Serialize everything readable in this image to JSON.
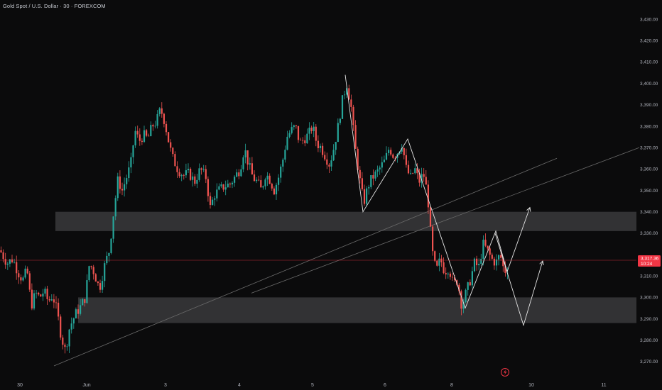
{
  "header": {
    "title": "Gold Spot / U.S. Dollar · 30 · FOREXCOM"
  },
  "colors": {
    "background": "#0b0b0c",
    "up": "#26a69a",
    "down": "#ef5350",
    "zone": "#3a3a3c",
    "price_line": "#f23645",
    "badge": "#f23645",
    "drawing": "#e6e6e6",
    "trendline": "#6b6b6b"
  },
  "chart_data": {
    "type": "candlestick",
    "symbol": "Gold Spot / U.S. Dollar",
    "interval": "30",
    "source": "FOREXCOM",
    "ylim": [
      3265,
      3435
    ],
    "y_ticks": [
      3430,
      3420,
      3410,
      3400,
      3390,
      3380,
      3370,
      3360,
      3350,
      3340,
      3330,
      3320,
      3310,
      3300,
      3290,
      3280,
      3270
    ],
    "y_tick_labels": [
      "3,430.00",
      "3,420.00",
      "3,410.00",
      "3,400.00",
      "3,390.00",
      "3,380.00",
      "3,370.00",
      "3,360.00",
      "3,350.00",
      "3,340.00",
      "3,330.00",
      "3,320.00",
      "3,310.00",
      "3,300.00",
      "3,290.00",
      "3,280.00",
      "3,270.00"
    ],
    "x_tick_labels": [
      "30",
      "Jun",
      "3",
      "4",
      "5",
      "6",
      "8",
      "10",
      "11"
    ],
    "current_price": {
      "value": 3317.36,
      "label": "3,317.36",
      "countdown": "10:24"
    },
    "zones": [
      {
        "name": "resistance-zone",
        "low": 3331,
        "high": 3340
      },
      {
        "name": "support-zone",
        "low": 3288,
        "high": 3300
      }
    ],
    "price_path": [
      [
        0,
        3322
      ],
      [
        10,
        3316
      ],
      [
        18,
        3318
      ],
      [
        25,
        3312
      ],
      [
        32,
        3308
      ],
      [
        38,
        3313
      ],
      [
        44,
        3296
      ],
      [
        50,
        3302
      ],
      [
        56,
        3300
      ],
      [
        62,
        3303
      ],
      [
        68,
        3298
      ],
      [
        74,
        3301
      ],
      [
        80,
        3294
      ],
      [
        86,
        3282
      ],
      [
        92,
        3275
      ],
      [
        98,
        3286
      ],
      [
        106,
        3292
      ],
      [
        114,
        3296
      ],
      [
        120,
        3300
      ],
      [
        126,
        3316
      ],
      [
        132,
        3312
      ],
      [
        140,
        3304
      ],
      [
        148,
        3316
      ],
      [
        154,
        3322
      ],
      [
        160,
        3340
      ],
      [
        166,
        3355
      ],
      [
        172,
        3350
      ],
      [
        178,
        3356
      ],
      [
        184,
        3362
      ],
      [
        190,
        3378
      ],
      [
        196,
        3373
      ],
      [
        202,
        3376
      ],
      [
        208,
        3374
      ],
      [
        214,
        3380
      ],
      [
        220,
        3382
      ],
      [
        226,
        3388
      ],
      [
        232,
        3382
      ],
      [
        236,
        3375
      ],
      [
        242,
        3366
      ],
      [
        250,
        3360
      ],
      [
        258,
        3357
      ],
      [
        266,
        3358
      ],
      [
        274,
        3354
      ],
      [
        282,
        3360
      ],
      [
        290,
        3356
      ],
      [
        296,
        3342
      ],
      [
        302,
        3348
      ],
      [
        308,
        3350
      ],
      [
        316,
        3352
      ],
      [
        324,
        3353
      ],
      [
        332,
        3357
      ],
      [
        338,
        3360
      ],
      [
        344,
        3370
      ],
      [
        350,
        3362
      ],
      [
        356,
        3356
      ],
      [
        362,
        3354
      ],
      [
        368,
        3350
      ],
      [
        374,
        3358
      ],
      [
        380,
        3355
      ],
      [
        386,
        3350
      ],
      [
        392,
        3356
      ],
      [
        398,
        3364
      ],
      [
        404,
        3375
      ],
      [
        410,
        3378
      ],
      [
        416,
        3380
      ],
      [
        422,
        3372
      ],
      [
        428,
        3374
      ],
      [
        434,
        3376
      ],
      [
        440,
        3380
      ],
      [
        446,
        3372
      ],
      [
        452,
        3370
      ],
      [
        458,
        3366
      ],
      [
        464,
        3362
      ],
      [
        470,
        3370
      ],
      [
        476,
        3380
      ],
      [
        482,
        3392
      ],
      [
        488,
        3400
      ],
      [
        494,
        3390
      ],
      [
        500,
        3370
      ],
      [
        506,
        3356
      ],
      [
        512,
        3344
      ],
      [
        518,
        3352
      ],
      [
        524,
        3356
      ],
      [
        530,
        3358
      ],
      [
        536,
        3361
      ],
      [
        542,
        3364
      ],
      [
        548,
        3370
      ],
      [
        554,
        3366
      ],
      [
        560,
        3368
      ],
      [
        566,
        3372
      ],
      [
        572,
        3360
      ],
      [
        578,
        3356
      ],
      [
        584,
        3360
      ],
      [
        590,
        3354
      ],
      [
        596,
        3358
      ],
      [
        602,
        3348
      ],
      [
        608,
        3322
      ],
      [
        614,
        3312
      ],
      [
        620,
        3318
      ],
      [
        626,
        3312
      ],
      [
        632,
        3314
      ],
      [
        638,
        3306
      ],
      [
        644,
        3308
      ],
      [
        650,
        3296
      ],
      [
        656,
        3302
      ],
      [
        662,
        3308
      ],
      [
        668,
        3316
      ],
      [
        674,
        3314
      ],
      [
        680,
        3325
      ],
      [
        686,
        3322
      ],
      [
        692,
        3318
      ],
      [
        698,
        3316
      ],
      [
        704,
        3320
      ],
      [
        710,
        3312
      ],
      [
        716,
        3314
      ]
    ],
    "projection_paths": [
      {
        "name": "forecast-path-a",
        "points": [
          [
            697,
            3330
          ],
          [
            737,
            3287
          ],
          [
            764,
            3317
          ]
        ]
      },
      {
        "name": "forecast-path-b",
        "points": [
          [
            714,
            3312
          ],
          [
            746,
            3342
          ]
        ]
      }
    ],
    "swing_lines": [
      {
        "name": "swing-line-1",
        "points": [
          [
            486,
            3404
          ],
          [
            511,
            3340
          ],
          [
            574,
            3374
          ],
          [
            655,
            3295
          ],
          [
            698,
            3331
          ],
          [
            714,
            3312
          ]
        ]
      }
    ],
    "trendlines": [
      {
        "name": "trendline-lower",
        "points": [
          [
            76,
            3268
          ],
          [
            784,
            3365
          ]
        ]
      },
      {
        "name": "trendline-upper",
        "points": [
          [
            354,
            3302
          ],
          [
            900,
            3370
          ]
        ]
      }
    ]
  }
}
